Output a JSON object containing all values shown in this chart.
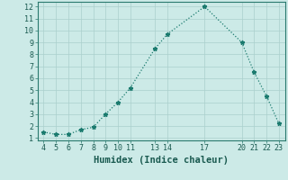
{
  "x": [
    4,
    5,
    6,
    7,
    8,
    9,
    10,
    11,
    13,
    14,
    17,
    20,
    21,
    22,
    23
  ],
  "y": [
    1.5,
    1.3,
    1.3,
    1.7,
    1.9,
    3.0,
    4.0,
    5.2,
    8.5,
    9.7,
    12.0,
    9.0,
    6.5,
    4.5,
    2.2
  ],
  "line_color": "#1a7a6e",
  "marker": "*",
  "marker_size": 3.5,
  "bg_color": "#cceae7",
  "grid_color": "#aacfcc",
  "xlabel": "Humidex (Indice chaleur)",
  "xlim": [
    3.5,
    23.5
  ],
  "ylim": [
    0.8,
    12.4
  ],
  "xticks": [
    4,
    5,
    6,
    7,
    8,
    9,
    10,
    11,
    13,
    14,
    17,
    20,
    21,
    22,
    23
  ],
  "yticks": [
    1,
    2,
    3,
    4,
    5,
    6,
    7,
    8,
    9,
    10,
    11,
    12
  ],
  "tick_fontsize": 6,
  "xlabel_fontsize": 7.5,
  "line_width": 0.9,
  "spine_color": "#2a7a6e"
}
